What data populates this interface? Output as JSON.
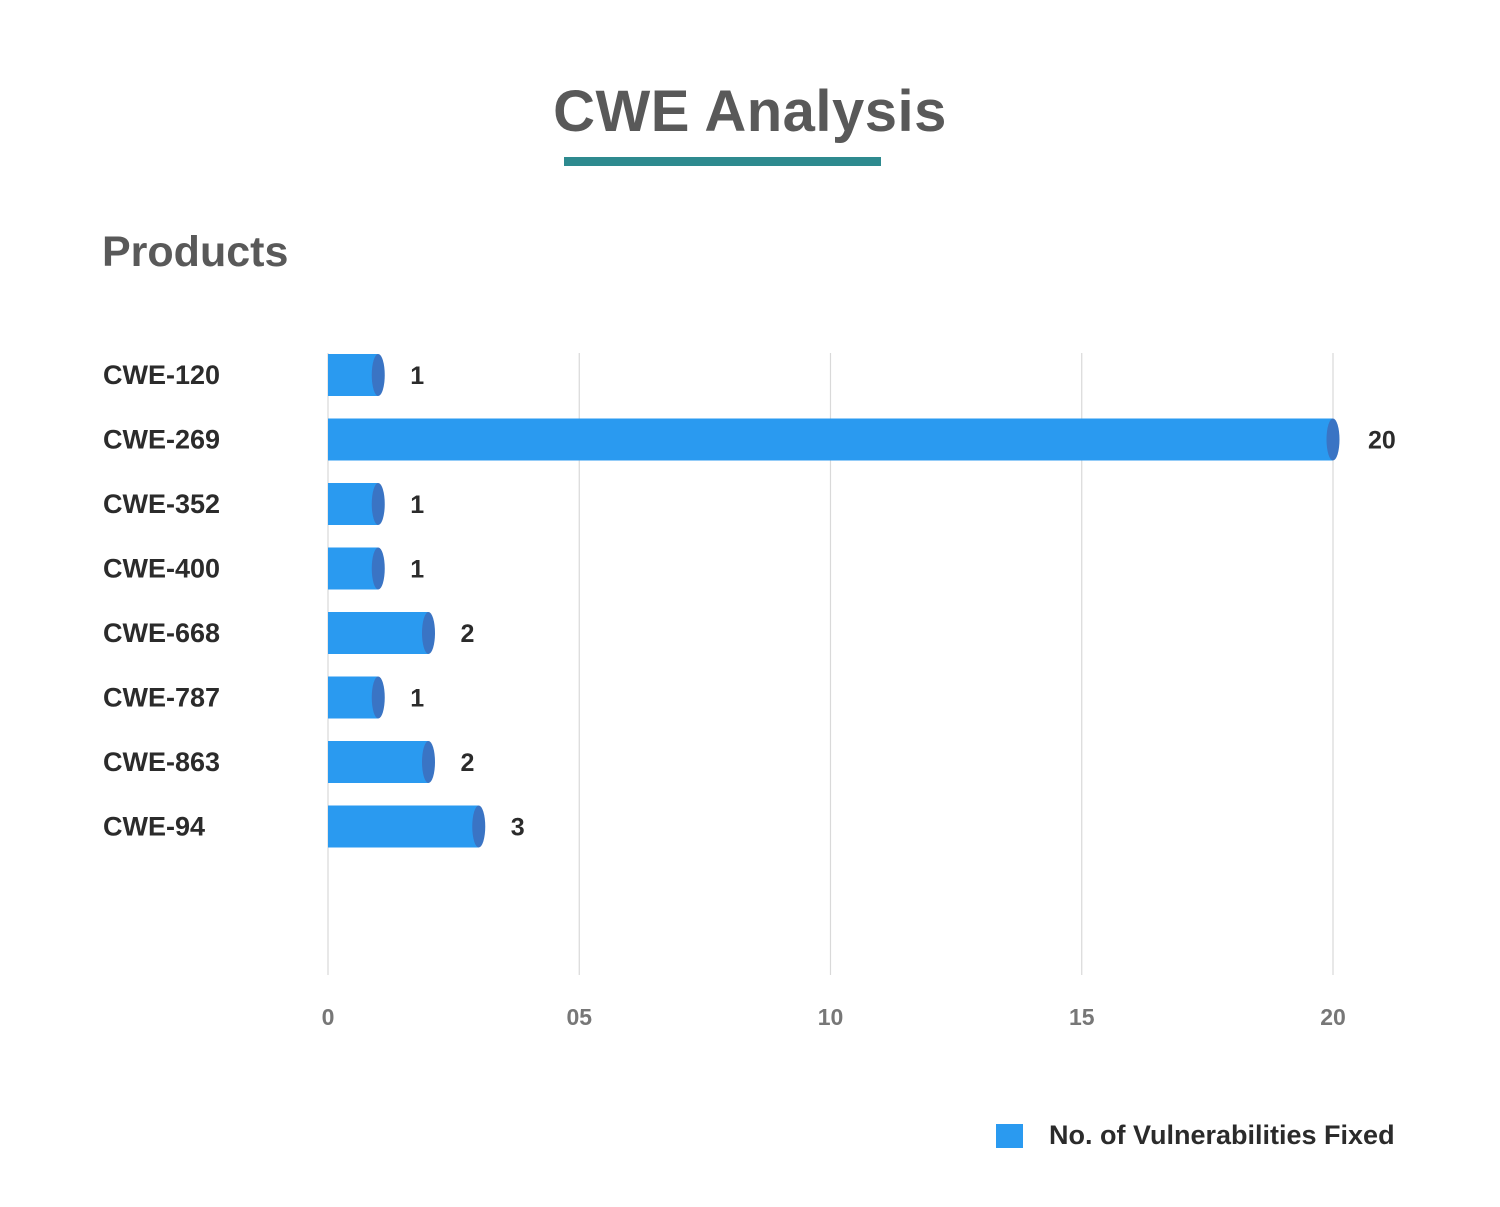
{
  "header": {
    "title": "CWE Analysis"
  },
  "colors": {
    "accent_line": "#2e8a8f",
    "bar": "#2a9af0",
    "bar_cap": "#3a74c4",
    "grid": "#d9d9d9",
    "text_dark": "#2b2b2b",
    "text_gray": "#595959",
    "tick_gray": "#777777"
  },
  "chart_data": {
    "type": "bar",
    "orientation": "horizontal",
    "title": "CWE Analysis",
    "ylabel": "Products",
    "xlabel": "",
    "categories": [
      "CWE-120",
      "CWE-269",
      "CWE-352",
      "CWE-400",
      "CWE-668",
      "CWE-787",
      "CWE-863",
      "CWE-94"
    ],
    "series": [
      {
        "name": "No. of Vulnerabilities Fixed",
        "values": [
          1,
          20,
          1,
          1,
          2,
          1,
          2,
          3
        ]
      }
    ],
    "xlim": [
      0,
      20
    ],
    "xticks": [
      0,
      5,
      10,
      15,
      20
    ],
    "xtick_labels": [
      "0",
      "05",
      "10",
      "15",
      "20"
    ],
    "grid": "vertical",
    "legend": "bottom-right"
  }
}
